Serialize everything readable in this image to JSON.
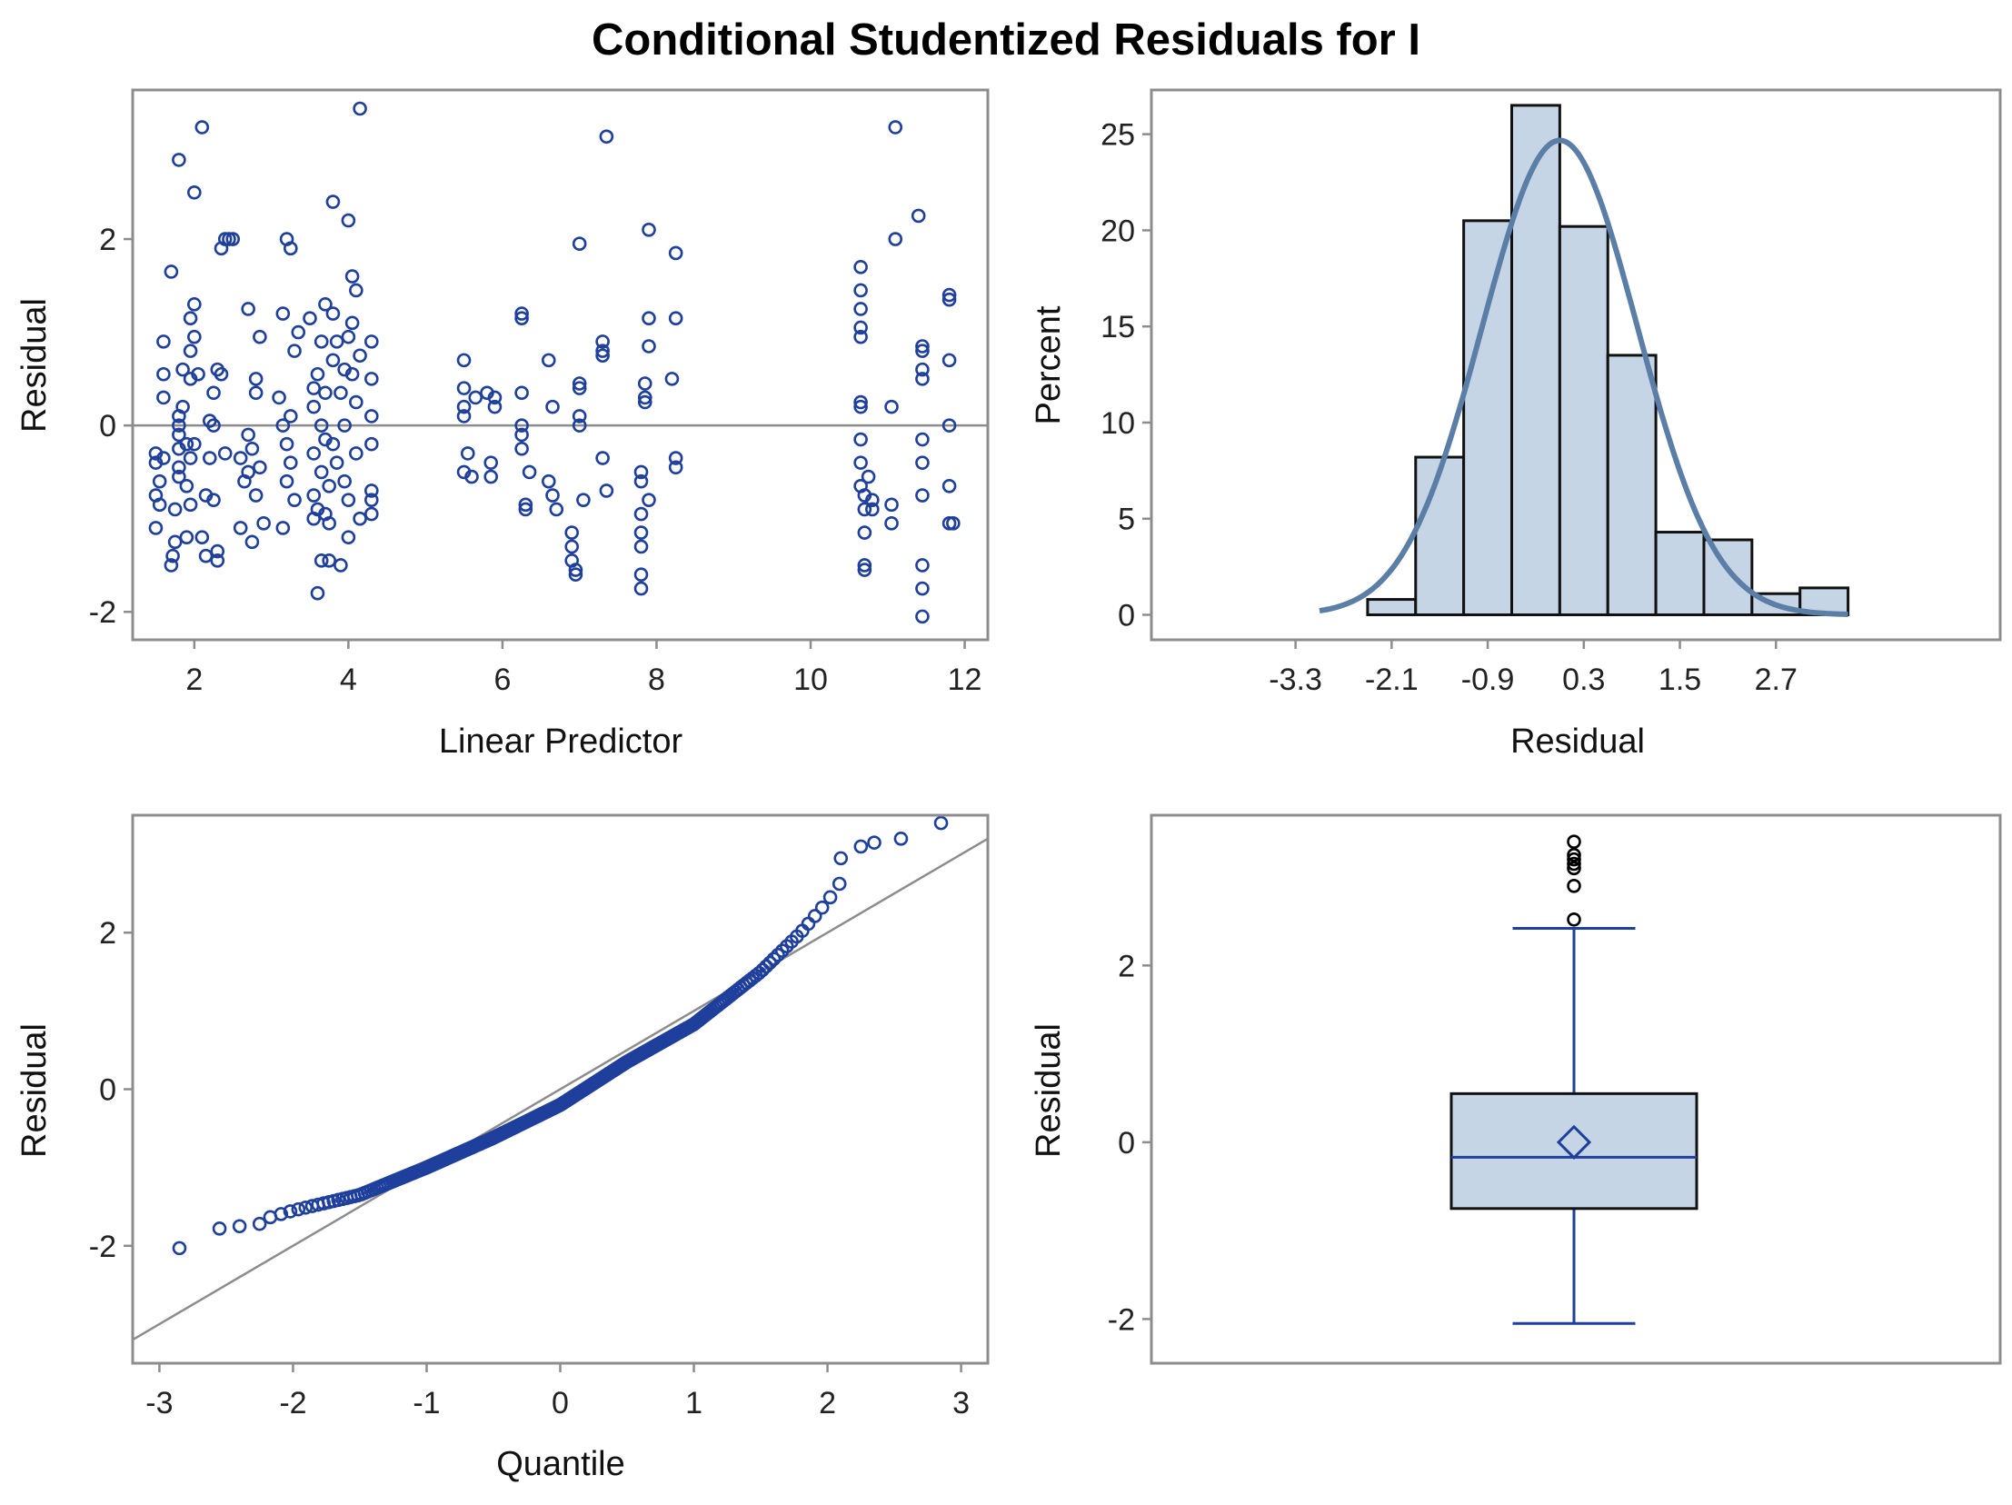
{
  "title": "Conditional Studentized Residuals for I",
  "colors": {
    "marker": "#1f3f9c",
    "fill": "#c5d5e6",
    "curve": "#5b7ea6",
    "frame": "#8c8c8c",
    "refline": "#8c8c8c",
    "outlier": "#000000"
  },
  "chart_data": [
    {
      "type": "scatter",
      "name": "residual-vs-linear-predictor",
      "xlabel": "Linear Predictor",
      "ylabel": "Residual",
      "xlim": [
        1.2,
        12.3
      ],
      "ylim": [
        -2.3,
        3.6
      ],
      "xticks": [
        2,
        4,
        6,
        8,
        10,
        12
      ],
      "yticks": [
        -2,
        0,
        2
      ],
      "reference_y": 0,
      "points": [
        [
          1.5,
          -0.3
        ],
        [
          1.5,
          -0.4
        ],
        [
          1.5,
          -0.75
        ],
        [
          1.55,
          -0.85
        ],
        [
          1.5,
          -1.1
        ],
        [
          1.55,
          -0.6
        ],
        [
          1.6,
          0.3
        ],
        [
          1.6,
          0.55
        ],
        [
          1.6,
          0.9
        ],
        [
          1.6,
          -0.35
        ],
        [
          1.7,
          1.65
        ],
        [
          1.7,
          -1.5
        ],
        [
          1.72,
          -1.4
        ],
        [
          1.75,
          -1.25
        ],
        [
          1.75,
          -0.9
        ],
        [
          1.8,
          2.85
        ],
        [
          1.8,
          0.1
        ],
        [
          1.8,
          0.0
        ],
        [
          1.8,
          -0.1
        ],
        [
          1.8,
          -0.25
        ],
        [
          1.8,
          -0.45
        ],
        [
          1.8,
          -0.55
        ],
        [
          1.85,
          0.6
        ],
        [
          1.85,
          0.2
        ],
        [
          1.9,
          -0.2
        ],
        [
          1.9,
          -0.65
        ],
        [
          1.9,
          -1.2
        ],
        [
          1.95,
          1.15
        ],
        [
          1.95,
          0.5
        ],
        [
          1.95,
          0.8
        ],
        [
          1.95,
          -0.35
        ],
        [
          1.95,
          -0.85
        ],
        [
          2.0,
          2.5
        ],
        [
          2.0,
          1.3
        ],
        [
          2.0,
          0.95
        ],
        [
          2.05,
          0.55
        ],
        [
          2.0,
          -0.2
        ],
        [
          2.1,
          3.2
        ],
        [
          2.1,
          -1.2
        ],
        [
          2.15,
          -0.75
        ],
        [
          2.15,
          -1.4
        ],
        [
          2.2,
          0.05
        ],
        [
          2.2,
          -0.35
        ],
        [
          2.25,
          0.35
        ],
        [
          2.25,
          0.0
        ],
        [
          2.25,
          -0.8
        ],
        [
          2.3,
          0.6
        ],
        [
          2.3,
          -1.45
        ],
        [
          2.3,
          -1.35
        ],
        [
          2.35,
          1.9
        ],
        [
          2.4,
          2.0
        ],
        [
          2.45,
          2.0
        ],
        [
          2.5,
          2.0
        ],
        [
          2.35,
          0.55
        ],
        [
          2.4,
          -0.3
        ],
        [
          2.6,
          -1.1
        ],
        [
          2.6,
          -0.35
        ],
        [
          2.65,
          -0.6
        ],
        [
          2.7,
          1.25
        ],
        [
          2.7,
          -0.1
        ],
        [
          2.7,
          -0.5
        ],
        [
          2.75,
          -0.25
        ],
        [
          2.75,
          -1.25
        ],
        [
          2.8,
          0.35
        ],
        [
          2.8,
          0.5
        ],
        [
          2.8,
          -0.75
        ],
        [
          2.85,
          0.95
        ],
        [
          2.85,
          -0.45
        ],
        [
          2.9,
          -1.05
        ],
        [
          3.1,
          0.3
        ],
        [
          3.15,
          1.2
        ],
        [
          3.15,
          0.0
        ],
        [
          3.15,
          -1.1
        ],
        [
          3.2,
          2.0
        ],
        [
          3.2,
          -0.2
        ],
        [
          3.2,
          -0.6
        ],
        [
          3.25,
          1.9
        ],
        [
          3.25,
          0.1
        ],
        [
          3.25,
          -0.4
        ],
        [
          3.3,
          0.8
        ],
        [
          3.3,
          -0.8
        ],
        [
          3.35,
          1.0
        ],
        [
          3.5,
          1.15
        ],
        [
          3.55,
          0.4
        ],
        [
          3.55,
          0.2
        ],
        [
          3.55,
          -0.3
        ],
        [
          3.55,
          -0.75
        ],
        [
          3.55,
          -1.0
        ],
        [
          3.6,
          -1.8
        ],
        [
          3.6,
          -0.9
        ],
        [
          3.6,
          0.55
        ],
        [
          3.65,
          0.9
        ],
        [
          3.65,
          0.0
        ],
        [
          3.65,
          -0.5
        ],
        [
          3.65,
          -1.45
        ],
        [
          3.7,
          1.3
        ],
        [
          3.7,
          0.35
        ],
        [
          3.7,
          -0.15
        ],
        [
          3.7,
          -0.95
        ],
        [
          3.75,
          -1.45
        ],
        [
          3.75,
          -1.05
        ],
        [
          3.75,
          -0.65
        ],
        [
          3.8,
          2.4
        ],
        [
          3.8,
          1.2
        ],
        [
          3.8,
          0.7
        ],
        [
          3.8,
          -0.2
        ],
        [
          3.85,
          0.9
        ],
        [
          3.85,
          -0.4
        ],
        [
          3.9,
          0.35
        ],
        [
          3.9,
          -1.5
        ],
        [
          3.95,
          0.6
        ],
        [
          3.95,
          0.0
        ],
        [
          3.95,
          -0.6
        ],
        [
          4.0,
          2.2
        ],
        [
          4.0,
          0.95
        ],
        [
          4.0,
          -0.8
        ],
        [
          4.0,
          -1.2
        ],
        [
          4.05,
          1.6
        ],
        [
          4.05,
          1.1
        ],
        [
          4.05,
          0.55
        ],
        [
          4.1,
          1.45
        ],
        [
          4.1,
          0.25
        ],
        [
          4.1,
          -0.3
        ],
        [
          4.15,
          3.4
        ],
        [
          4.15,
          0.75
        ],
        [
          4.15,
          -1.0
        ],
        [
          4.3,
          0.9
        ],
        [
          4.3,
          0.5
        ],
        [
          4.3,
          0.1
        ],
        [
          4.3,
          -0.2
        ],
        [
          4.3,
          -0.8
        ],
        [
          4.3,
          -0.95
        ],
        [
          4.3,
          -0.7
        ],
        [
          5.5,
          0.7
        ],
        [
          5.5,
          0.4
        ],
        [
          5.5,
          0.2
        ],
        [
          5.5,
          0.1
        ],
        [
          5.5,
          -0.5
        ],
        [
          5.55,
          -0.3
        ],
        [
          5.6,
          -0.55
        ],
        [
          5.65,
          0.3
        ],
        [
          5.8,
          0.35
        ],
        [
          5.85,
          -0.4
        ],
        [
          5.85,
          -0.55
        ],
        [
          5.9,
          0.3
        ],
        [
          5.9,
          0.2
        ],
        [
          6.25,
          1.2
        ],
        [
          6.25,
          1.15
        ],
        [
          6.25,
          0.35
        ],
        [
          6.25,
          0.0
        ],
        [
          6.25,
          -0.1
        ],
        [
          6.25,
          -0.25
        ],
        [
          6.3,
          -0.85
        ],
        [
          6.3,
          -0.9
        ],
        [
          6.35,
          -0.5
        ],
        [
          6.6,
          0.7
        ],
        [
          6.6,
          -0.6
        ],
        [
          6.65,
          -0.75
        ],
        [
          6.7,
          -0.9
        ],
        [
          6.65,
          0.2
        ],
        [
          6.9,
          -1.15
        ],
        [
          6.9,
          -1.3
        ],
        [
          6.9,
          -1.45
        ],
        [
          6.95,
          -1.6
        ],
        [
          6.95,
          -1.55
        ],
        [
          7.0,
          1.95
        ],
        [
          7.0,
          0.45
        ],
        [
          7.0,
          0.4
        ],
        [
          7.0,
          0.1
        ],
        [
          7.0,
          0.0
        ],
        [
          7.05,
          -0.8
        ],
        [
          7.3,
          0.9
        ],
        [
          7.3,
          0.8
        ],
        [
          7.3,
          0.75
        ],
        [
          7.3,
          -0.35
        ],
        [
          7.35,
          -0.7
        ],
        [
          7.35,
          3.1
        ],
        [
          7.8,
          -0.5
        ],
        [
          7.8,
          -0.6
        ],
        [
          7.8,
          -0.95
        ],
        [
          7.8,
          -1.15
        ],
        [
          7.8,
          -1.3
        ],
        [
          7.8,
          -1.6
        ],
        [
          7.8,
          -1.75
        ],
        [
          7.85,
          0.25
        ],
        [
          7.85,
          0.3
        ],
        [
          7.85,
          0.45
        ],
        [
          7.9,
          0.85
        ],
        [
          7.9,
          1.15
        ],
        [
          7.9,
          2.1
        ],
        [
          7.9,
          -0.8
        ],
        [
          8.2,
          0.5
        ],
        [
          8.25,
          1.15
        ],
        [
          8.25,
          1.85
        ],
        [
          8.25,
          -0.35
        ],
        [
          8.25,
          -0.45
        ],
        [
          10.65,
          1.7
        ],
        [
          10.65,
          1.45
        ],
        [
          10.65,
          1.25
        ],
        [
          10.65,
          1.05
        ],
        [
          10.65,
          0.95
        ],
        [
          10.65,
          0.25
        ],
        [
          10.65,
          0.2
        ],
        [
          10.65,
          -0.15
        ],
        [
          10.65,
          -0.4
        ],
        [
          10.65,
          -0.65
        ],
        [
          10.7,
          -0.75
        ],
        [
          10.7,
          -0.9
        ],
        [
          10.7,
          -1.15
        ],
        [
          10.7,
          -1.55
        ],
        [
          10.7,
          -1.5
        ],
        [
          10.75,
          -0.55
        ],
        [
          10.8,
          -0.8
        ],
        [
          10.8,
          -0.9
        ],
        [
          11.05,
          -0.85
        ],
        [
          11.05,
          -1.05
        ],
        [
          11.05,
          0.2
        ],
        [
          11.1,
          2.0
        ],
        [
          11.1,
          3.2
        ],
        [
          11.4,
          2.25
        ],
        [
          11.45,
          0.85
        ],
        [
          11.45,
          0.8
        ],
        [
          11.45,
          0.6
        ],
        [
          11.45,
          0.5
        ],
        [
          11.45,
          -0.15
        ],
        [
          11.45,
          -0.4
        ],
        [
          11.45,
          -0.75
        ],
        [
          11.45,
          -1.5
        ],
        [
          11.45,
          -1.75
        ],
        [
          11.45,
          -2.05
        ],
        [
          11.8,
          1.4
        ],
        [
          11.8,
          1.35
        ],
        [
          11.8,
          0.7
        ],
        [
          11.8,
          0.0
        ],
        [
          11.8,
          -0.65
        ],
        [
          11.8,
          -1.05
        ],
        [
          11.85,
          -1.05
        ]
      ]
    },
    {
      "type": "bar",
      "name": "residual-histogram",
      "xlabel": "Residual",
      "ylabel": "Percent",
      "xlim": [
        -5.1,
        5.5
      ],
      "ylim": [
        -1.3,
        27.3
      ],
      "xticks": [
        "-3.3",
        "-2.1",
        "-0.9",
        "0.3",
        "1.5",
        "2.7"
      ],
      "yticks": [
        0,
        5,
        10,
        15,
        20,
        25
      ],
      "bin_width": 0.6,
      "bin_starts": [
        -2.4,
        -1.8,
        -1.2,
        -0.6,
        0.0,
        0.6,
        1.2,
        1.8,
        2.4,
        3.0
      ],
      "values": [
        0.8,
        8.2,
        20.5,
        26.5,
        20.2,
        13.5,
        4.3,
        3.9,
        1.1,
        1.4
      ],
      "normal_curve": {
        "mean": 0.0,
        "sd": 0.97,
        "x_range": [
          -3.0,
          3.6
        ],
        "scale_percent_per_bin": 60.0
      }
    },
    {
      "type": "scatter",
      "name": "residual-qq-plot",
      "xlabel": "Quantile",
      "ylabel": "Residual",
      "xlim": [
        -3.2,
        3.2
      ],
      "ylim": [
        -3.5,
        3.5
      ],
      "xticks": [
        -3,
        -2,
        -1,
        0,
        1,
        2,
        3
      ],
      "yticks": [
        -2,
        0,
        2
      ],
      "n_points": 300,
      "reference_line": {
        "intercept": 0.0,
        "slope": 1.0
      },
      "sample_quantiles_q": [
        [
          -3.0,
          -2.0
        ],
        [
          -2.5,
          -1.8
        ],
        [
          -2.0,
          -1.55
        ],
        [
          -1.5,
          -1.35
        ],
        [
          -1.0,
          -1.0
        ],
        [
          -0.5,
          -0.62
        ],
        [
          0.0,
          -0.2
        ],
        [
          0.5,
          0.35
        ],
        [
          1.0,
          0.83
        ],
        [
          1.5,
          1.5
        ],
        [
          1.8,
          2.0
        ],
        [
          2.0,
          2.4
        ],
        [
          2.2,
          2.9
        ],
        [
          2.5,
          3.2
        ],
        [
          2.9,
          3.4
        ]
      ],
      "extreme_points": [
        [
          -2.85,
          -2.03
        ],
        [
          -2.55,
          -1.78
        ],
        [
          -2.4,
          -1.75
        ],
        [
          -2.25,
          -1.72
        ],
        [
          2.1,
          2.95
        ],
        [
          2.25,
          3.1
        ],
        [
          2.35,
          3.15
        ],
        [
          2.55,
          3.2
        ],
        [
          2.85,
          3.4
        ]
      ]
    },
    {
      "type": "box",
      "name": "residual-boxplot",
      "ylabel": "Residual",
      "ylim": [
        -2.5,
        3.7
      ],
      "yticks": [
        -2,
        0,
        2
      ],
      "whisker_low": -2.05,
      "q1": -0.75,
      "median": -0.17,
      "mean": 0.0,
      "q3": 0.55,
      "whisker_high": 2.42,
      "outliers": [
        2.52,
        2.9,
        3.1,
        3.15,
        3.2,
        3.25,
        3.4
      ]
    }
  ]
}
